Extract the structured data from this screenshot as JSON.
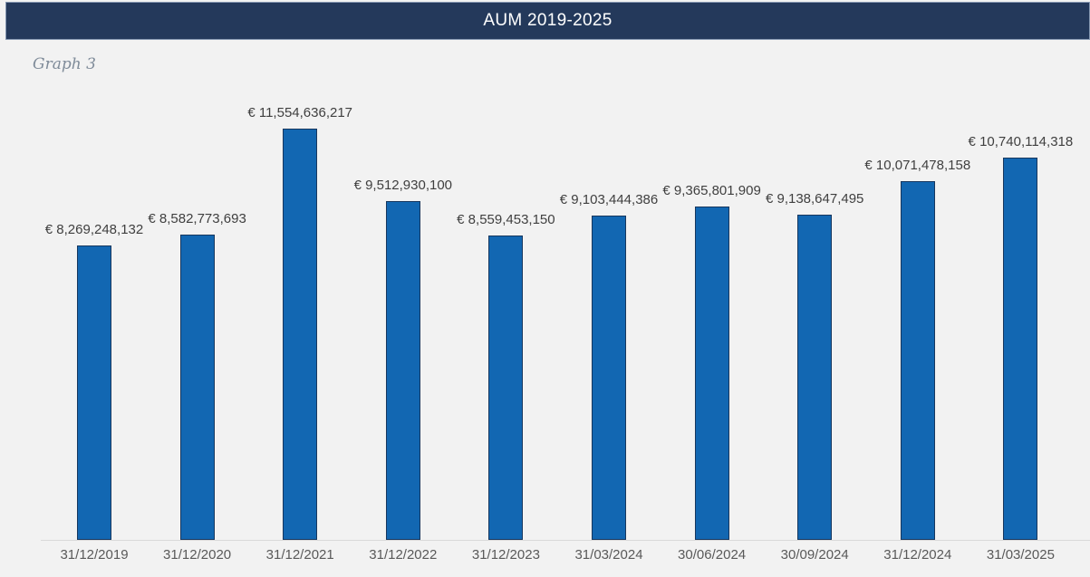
{
  "header": {
    "title": "AUM 2019-2025"
  },
  "caption": {
    "text": "Graph 3"
  },
  "chart_data": {
    "type": "bar",
    "title": "AUM 2019-2025",
    "currency_symbol": "€",
    "categories": [
      "31/12/2019",
      "31/12/2020",
      "31/12/2021",
      "31/12/2022",
      "31/12/2023",
      "31/03/2024",
      "30/06/2024",
      "30/09/2024",
      "31/12/2024",
      "31/03/2025"
    ],
    "values": [
      8269248132,
      8582773693,
      11554636217,
      9512930100,
      8559453150,
      9103444386,
      9365801909,
      9138647495,
      10071478158,
      10740114318
    ],
    "labels": [
      "€ 8,269,248,132",
      "€ 8,582,773,693",
      "€ 11,554,636,217",
      "€ 9,512,930,100",
      "€ 8,559,453,150",
      "€ 9,103,444,386",
      "€ 9,365,801,909",
      "€ 9,138,647,495",
      "€ 10,071,478,158",
      "€ 10,740,114,318"
    ],
    "xlabel": "",
    "ylabel": "",
    "ylim": [
      0,
      11554636217
    ],
    "grid": false,
    "legend": "none",
    "data_labels_position": "outside-end"
  },
  "colors": {
    "page_bg": "#F2F2F2",
    "header_bg": "#24395B",
    "header_border": "#8496B0",
    "header_text": "#FFFFFF",
    "caption": "#7F8B99",
    "bar_fill": "#1267B2",
    "bar_border": "#17375E",
    "data_label": "#3F3F3F",
    "axis_label": "#595959",
    "axis_line": "#D9D9D9"
  }
}
